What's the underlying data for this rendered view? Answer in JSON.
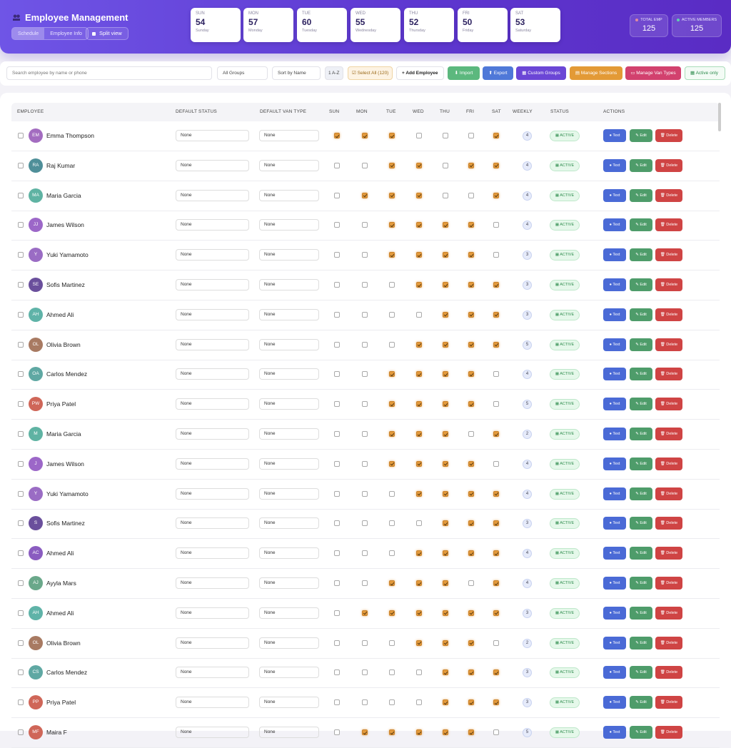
{
  "header": {
    "title": "Employee Management",
    "tabs": [
      "Schedule",
      "Employee Info"
    ],
    "split_view": "Split view"
  },
  "days": [
    {
      "abbr": "SUN",
      "count": "54",
      "name": "Sunday"
    },
    {
      "abbr": "MON",
      "count": "57",
      "name": "Monday"
    },
    {
      "abbr": "TUE",
      "count": "60",
      "name": "Tuesday"
    },
    {
      "abbr": "WED",
      "count": "55",
      "name": "Wednesday"
    },
    {
      "abbr": "THU",
      "count": "52",
      "name": "Thursday"
    },
    {
      "abbr": "FRI",
      "count": "50",
      "name": "Friday"
    },
    {
      "abbr": "SAT",
      "count": "53",
      "name": "Saturday"
    }
  ],
  "stats": [
    {
      "label": "TOTAL EMP",
      "value": "125",
      "dot": "#e08aa0"
    },
    {
      "label": "ACTIVE MEMBERS",
      "value": "125",
      "dot": "#5fd0b0"
    }
  ],
  "toolbar": {
    "search_placeholder": "Search employee by name or phone",
    "groups": "All Groups",
    "sort": "Sort by Name",
    "order": "1 A-Z",
    "select_all": "☑ Select All (120)",
    "add": "+ Add Employee",
    "import": "⬇ Import",
    "export": "⬆ Export",
    "custom_groups": "▦ Custom Groups",
    "manage_sections": "▤ Manage Sections",
    "manage_van": "▭ Manage Van Types",
    "active_only": "▦ Active only"
  },
  "columns": [
    "EMPLOYEE",
    "DEFAULT STATUS",
    "DEFAULT VAN TYPE",
    "SUN",
    "MON",
    "TUE",
    "WED",
    "THU",
    "FRI",
    "SAT",
    "WEEKLY",
    "STATUS",
    "ACTIONS"
  ],
  "actions": {
    "text": "● Text",
    "edit": "✎ Edit",
    "delete": "🗑 Delete"
  },
  "employees": [
    {
      "name": "Emma Thompson",
      "initials": "EM",
      "color": "#a36cc0",
      "status": "None",
      "van": "None",
      "days": [
        1,
        1,
        1,
        0,
        0,
        0,
        1
      ],
      "weekly": "4",
      "state": "ACTIVE"
    },
    {
      "name": "Raj Kumar",
      "initials": "RA",
      "color": "#4f8f99",
      "status": "None",
      "van": "None",
      "days": [
        0,
        0,
        1,
        1,
        0,
        1,
        1
      ],
      "weekly": "4",
      "state": "ACTIVE"
    },
    {
      "name": "Maria Garcia",
      "initials": "MA",
      "color": "#5fb3a3",
      "status": "None",
      "van": "None",
      "days": [
        0,
        1,
        1,
        1,
        0,
        0,
        1
      ],
      "weekly": "4",
      "state": "ACTIVE"
    },
    {
      "name": "James Wilson",
      "initials": "JJ",
      "color": "#9c67c8",
      "status": "None",
      "van": "None",
      "days": [
        0,
        0,
        1,
        1,
        1,
        1,
        0
      ],
      "weekly": "4",
      "state": "ACTIVE"
    },
    {
      "name": "Yuki Yamamoto",
      "initials": "Y",
      "color": "#9a6cc4",
      "status": "None",
      "van": "None",
      "days": [
        0,
        0,
        1,
        1,
        1,
        1,
        0
      ],
      "weekly": "3",
      "state": "ACTIVE"
    },
    {
      "name": "Sofis Martinez",
      "initials": "SE",
      "color": "#6a4f9c",
      "status": "None",
      "van": "None",
      "days": [
        0,
        0,
        0,
        1,
        1,
        1,
        1
      ],
      "weekly": "3",
      "state": "ACTIVE"
    },
    {
      "name": "Ahmed Ali",
      "initials": "AH",
      "color": "#5fb3a8",
      "status": "None",
      "van": "None",
      "days": [
        0,
        0,
        0,
        0,
        1,
        1,
        1
      ],
      "weekly": "3",
      "state": "ACTIVE"
    },
    {
      "name": "Olivia Brown",
      "initials": "OL",
      "color": "#a87a62",
      "status": "None",
      "van": "None",
      "days": [
        0,
        0,
        0,
        1,
        1,
        1,
        1
      ],
      "weekly": "5",
      "state": "ACTIVE"
    },
    {
      "name": "Carlos Mendez",
      "initials": "OA",
      "color": "#5fa8a3",
      "status": "None",
      "van": "None",
      "days": [
        0,
        0,
        1,
        1,
        1,
        1,
        0
      ],
      "weekly": "4",
      "state": "ACTIVE"
    },
    {
      "name": "Priya Patel",
      "initials": "PW",
      "color": "#cf6658",
      "status": "None",
      "van": "None",
      "days": [
        0,
        0,
        1,
        1,
        1,
        1,
        0
      ],
      "weekly": "5",
      "state": "ACTIVE"
    },
    {
      "name": "Maria Garcia",
      "initials": "M",
      "color": "#5fb3a3",
      "status": "None",
      "van": "None",
      "days": [
        0,
        0,
        1,
        1,
        1,
        0,
        1
      ],
      "weekly": "2",
      "state": "ACTIVE"
    },
    {
      "name": "James Wilson",
      "initials": "J",
      "color": "#9c67c8",
      "status": "None",
      "van": "None",
      "days": [
        0,
        0,
        1,
        1,
        1,
        1,
        0
      ],
      "weekly": "4",
      "state": "ACTIVE"
    },
    {
      "name": "Yuki Yamamoto",
      "initials": "Y",
      "color": "#9a6cc4",
      "status": "None",
      "van": "None",
      "days": [
        0,
        0,
        0,
        1,
        1,
        1,
        1
      ],
      "weekly": "4",
      "state": "ACTIVE"
    },
    {
      "name": "Sofis Martinez",
      "initials": "S",
      "color": "#6a4f9c",
      "status": "None",
      "van": "None",
      "days": [
        0,
        0,
        0,
        0,
        1,
        1,
        1
      ],
      "weekly": "3",
      "state": "ACTIVE"
    },
    {
      "name": "Ahmed Ali",
      "initials": "AC",
      "color": "#8a5cc0",
      "status": "None",
      "van": "None",
      "days": [
        0,
        0,
        0,
        1,
        1,
        1,
        1
      ],
      "weekly": "4",
      "state": "ACTIVE"
    },
    {
      "name": "Ayyla Mars",
      "initials": "AJ",
      "color": "#6aa88a",
      "status": "None",
      "van": "None",
      "days": [
        0,
        0,
        1,
        1,
        1,
        0,
        1
      ],
      "weekly": "4",
      "state": "ACTIVE"
    },
    {
      "name": "Ahmed Ali",
      "initials": "AH",
      "color": "#5fb3a8",
      "status": "None",
      "van": "None",
      "days": [
        0,
        1,
        1,
        1,
        1,
        1,
        1
      ],
      "weekly": "3",
      "state": "ACTIVE"
    },
    {
      "name": "Olivia Brown",
      "initials": "OL",
      "color": "#a87a62",
      "status": "None",
      "van": "None",
      "days": [
        0,
        0,
        0,
        1,
        1,
        1,
        0
      ],
      "weekly": "2",
      "state": "ACTIVE"
    },
    {
      "name": "Carlos Mendez",
      "initials": "CS",
      "color": "#5fa8a3",
      "status": "None",
      "van": "None",
      "days": [
        0,
        0,
        0,
        0,
        1,
        1,
        1
      ],
      "weekly": "3",
      "state": "ACTIVE"
    },
    {
      "name": "Priya Patel",
      "initials": "PP",
      "color": "#cf6658",
      "status": "None",
      "van": "None",
      "days": [
        0,
        0,
        0,
        0,
        1,
        1,
        1
      ],
      "weekly": "3",
      "state": "ACTIVE"
    },
    {
      "name": "Maira F",
      "initials": "MF",
      "color": "#cf6658",
      "status": "None",
      "van": "None",
      "days": [
        0,
        1,
        1,
        1,
        1,
        1,
        0
      ],
      "weekly": "5",
      "state": "ACTIVE"
    }
  ]
}
